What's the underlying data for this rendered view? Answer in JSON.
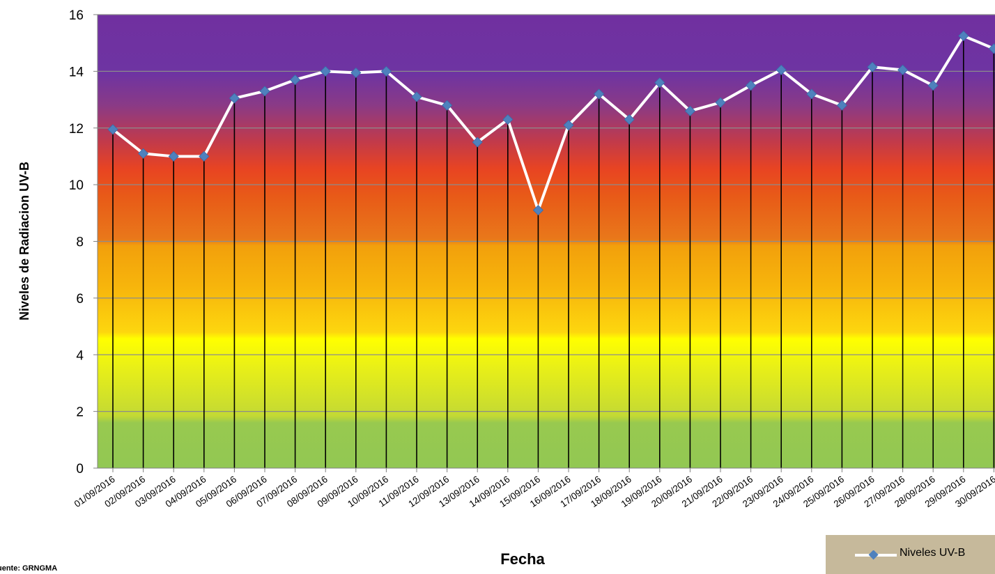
{
  "chart_data": {
    "type": "line",
    "xlabel": "Fecha",
    "ylabel": "Niveles de Radiacion UV-B",
    "ylim": [
      0,
      16
    ],
    "yticks": [
      0,
      2,
      4,
      6,
      8,
      10,
      12,
      14,
      16
    ],
    "grid": true,
    "legend_position": "bottom-right",
    "background_bands": "uv index colour scale: green (0-2), yellow (2-5), orange (5-8), red (8-11), violet (11+)",
    "categories": [
      "01/09/2016",
      "02/09/2016",
      "03/09/2016",
      "04/09/2016",
      "05/09/2016",
      "06/09/2016",
      "07/09/2016",
      "08/09/2016",
      "09/09/2016",
      "10/09/2016",
      "11/09/2016",
      "12/09/2016",
      "13/09/2016",
      "14/09/2016",
      "15/09/2016",
      "16/09/2016",
      "17/09/2016",
      "18/09/2016",
      "19/09/2016",
      "20/09/2016",
      "21/09/2016",
      "22/09/2016",
      "23/09/2016",
      "24/09/2016",
      "25/09/2016",
      "26/09/2016",
      "27/09/2016",
      "28/09/2016",
      "29/09/2016",
      "30/09/2016"
    ],
    "series": [
      {
        "name": "Niveles UV-B",
        "color": "#ffffff",
        "marker_color": "#4f81bd",
        "values": [
          11.95,
          11.1,
          11.0,
          11.0,
          13.05,
          13.3,
          13.7,
          14.0,
          13.95,
          14.0,
          13.1,
          12.8,
          11.5,
          12.3,
          9.1,
          12.1,
          13.2,
          12.3,
          13.6,
          12.6,
          12.9,
          13.5,
          14.05,
          13.2,
          12.8,
          14.15,
          14.05,
          13.5,
          15.25,
          14.8
        ]
      }
    ]
  },
  "source_note": "uente: GRNGMA"
}
